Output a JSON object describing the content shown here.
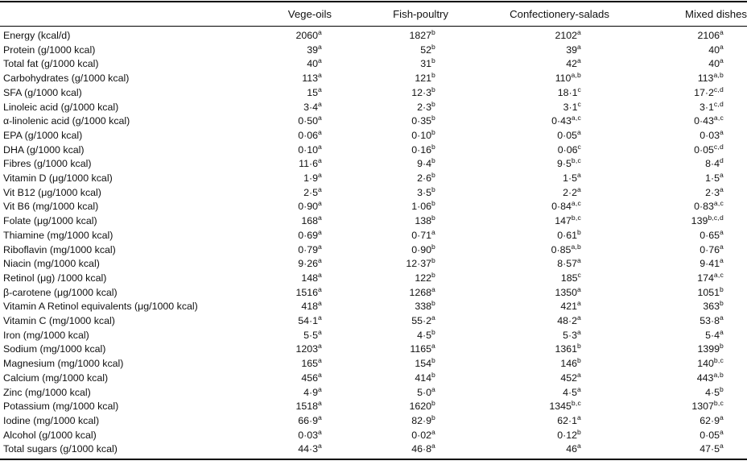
{
  "table": {
    "columns": [
      "Vege-oils",
      "Fish-poultry",
      "Confectionery-salads",
      "Mixed dishes"
    ],
    "rows": [
      {
        "label": "Energy (kcal/d)",
        "cells": [
          {
            "v": "2060",
            "s": "a"
          },
          {
            "v": "1827",
            "s": "b"
          },
          {
            "v": "2102",
            "s": "a"
          },
          {
            "v": "2106",
            "s": "a"
          }
        ]
      },
      {
        "label": "Protein (g/1000 kcal)",
        "cells": [
          {
            "v": "39",
            "s": "a"
          },
          {
            "v": "52",
            "s": "b"
          },
          {
            "v": "39",
            "s": "a"
          },
          {
            "v": "40",
            "s": "a"
          }
        ]
      },
      {
        "label": "Total fat (g/1000 kcal)",
        "cells": [
          {
            "v": "40",
            "s": "a"
          },
          {
            "v": "31",
            "s": "b"
          },
          {
            "v": "42",
            "s": "a"
          },
          {
            "v": "40",
            "s": "a"
          }
        ]
      },
      {
        "label": "Carbohydrates (g/1000 kcal)",
        "cells": [
          {
            "v": "113",
            "s": "a"
          },
          {
            "v": "121",
            "s": "b"
          },
          {
            "v": "110",
            "s": "a,b"
          },
          {
            "v": "113",
            "s": "a,b"
          }
        ]
      },
      {
        "label": "SFA (g/1000 kcal)",
        "cells": [
          {
            "v": "15",
            "s": "a"
          },
          {
            "v": "12·3",
            "s": "b"
          },
          {
            "v": "18·1",
            "s": "c"
          },
          {
            "v": "17·2",
            "s": "c,d"
          }
        ]
      },
      {
        "label": "Linoleic acid (g/1000 kcal)",
        "cells": [
          {
            "v": "3·4",
            "s": "a"
          },
          {
            "v": "2·3",
            "s": "b"
          },
          {
            "v": "3·1",
            "s": "c"
          },
          {
            "v": "3·1",
            "s": "c,d"
          }
        ]
      },
      {
        "label": "α-linolenic acid (g/1000 kcal)",
        "cells": [
          {
            "v": "0·50",
            "s": "a"
          },
          {
            "v": "0·35",
            "s": "b"
          },
          {
            "v": "0·43",
            "s": "a,c"
          },
          {
            "v": "0·43",
            "s": "a,c"
          }
        ]
      },
      {
        "label": "EPA (g/1000 kcal)",
        "cells": [
          {
            "v": "0·06",
            "s": "a"
          },
          {
            "v": "0·10",
            "s": "b"
          },
          {
            "v": "0·05",
            "s": "a"
          },
          {
            "v": "0·03",
            "s": "a"
          }
        ]
      },
      {
        "label": "DHA (g/1000 kcal)",
        "cells": [
          {
            "v": "0·10",
            "s": "a"
          },
          {
            "v": "0·16",
            "s": "b"
          },
          {
            "v": "0·06",
            "s": "c"
          },
          {
            "v": "0·05",
            "s": "c,d"
          }
        ]
      },
      {
        "label": "Fibres (g/1000 kcal)",
        "cells": [
          {
            "v": "11·6",
            "s": "a"
          },
          {
            "v": "9·4",
            "s": "b"
          },
          {
            "v": "9·5",
            "s": "b,c"
          },
          {
            "v": "8·4",
            "s": "d"
          }
        ]
      },
      {
        "label": "Vitamin D (μg/1000 kcal)",
        "cells": [
          {
            "v": "1·9",
            "s": "a"
          },
          {
            "v": "2·6",
            "s": "b"
          },
          {
            "v": "1·5",
            "s": "a"
          },
          {
            "v": "1·5",
            "s": "a"
          }
        ]
      },
      {
        "label": "Vit B12 (μg/1000 kcal)",
        "cells": [
          {
            "v": "2·5",
            "s": "a"
          },
          {
            "v": "3·5",
            "s": "b"
          },
          {
            "v": "2·2",
            "s": "a"
          },
          {
            "v": "2·3",
            "s": "a"
          }
        ]
      },
      {
        "label": "Vit B6 (mg/1000 kcal)",
        "cells": [
          {
            "v": "0·90",
            "s": "a"
          },
          {
            "v": "1·06",
            "s": "b"
          },
          {
            "v": "0·84",
            "s": "a,c"
          },
          {
            "v": "0·83",
            "s": "a,c"
          }
        ]
      },
      {
        "label": "Folate (μg/1000 kcal)",
        "cells": [
          {
            "v": "168",
            "s": "a"
          },
          {
            "v": "138",
            "s": "b"
          },
          {
            "v": "147",
            "s": "b,c"
          },
          {
            "v": "139",
            "s": "b,c,d"
          }
        ]
      },
      {
        "label": "Thiamine (mg/1000 kcal)",
        "cells": [
          {
            "v": "0·69",
            "s": "a"
          },
          {
            "v": "0·71",
            "s": "a"
          },
          {
            "v": "0·61",
            "s": "b"
          },
          {
            "v": "0·65",
            "s": "a"
          }
        ]
      },
      {
        "label": "Riboflavin (mg/1000 kcal)",
        "cells": [
          {
            "v": "0·79",
            "s": "a"
          },
          {
            "v": "0·90",
            "s": "b"
          },
          {
            "v": "0·85",
            "s": "a,b"
          },
          {
            "v": "0·76",
            "s": "a"
          }
        ]
      },
      {
        "label": "Niacin (mg/1000 kcal)",
        "cells": [
          {
            "v": "9·26",
            "s": "a"
          },
          {
            "v": "12·37",
            "s": "b"
          },
          {
            "v": "8·57",
            "s": "a"
          },
          {
            "v": "9·41",
            "s": "a"
          }
        ]
      },
      {
        "label": "Retinol (μg) /1000 kcal)",
        "cells": [
          {
            "v": "148",
            "s": "a"
          },
          {
            "v": "122",
            "s": "b"
          },
          {
            "v": "185",
            "s": "c"
          },
          {
            "v": "174",
            "s": "a,c"
          }
        ]
      },
      {
        "label": "β-carotene (μg/1000 kcal)",
        "cells": [
          {
            "v": "1516",
            "s": "a"
          },
          {
            "v": "1268",
            "s": "a"
          },
          {
            "v": "1350",
            "s": "a"
          },
          {
            "v": "1051",
            "s": "b"
          }
        ]
      },
      {
        "label": "Vitamin A Retinol equivalents (μg/1000 kcal)",
        "cells": [
          {
            "v": "418",
            "s": "a"
          },
          {
            "v": "338",
            "s": "b"
          },
          {
            "v": "421",
            "s": "a"
          },
          {
            "v": "363",
            "s": "b"
          }
        ]
      },
      {
        "label": "Vitamin C (mg/1000 kcal)",
        "cells": [
          {
            "v": "54·1",
            "s": "a"
          },
          {
            "v": "55·2",
            "s": "a"
          },
          {
            "v": "48·2",
            "s": "a"
          },
          {
            "v": "53·8",
            "s": "a"
          }
        ]
      },
      {
        "label": "Iron (mg/1000 kcal)",
        "cells": [
          {
            "v": "5·5",
            "s": "a"
          },
          {
            "v": "4·5",
            "s": "b"
          },
          {
            "v": "5·3",
            "s": "a"
          },
          {
            "v": "5·4",
            "s": "a"
          }
        ]
      },
      {
        "label": "Sodium (mg/1000 kcal)",
        "cells": [
          {
            "v": "1203",
            "s": "a"
          },
          {
            "v": "1165",
            "s": "a"
          },
          {
            "v": "1361",
            "s": "b"
          },
          {
            "v": "1399",
            "s": "b"
          }
        ]
      },
      {
        "label": "Magnesium (mg/1000 kcal)",
        "cells": [
          {
            "v": "165",
            "s": "a"
          },
          {
            "v": "154",
            "s": "b"
          },
          {
            "v": "146",
            "s": "b"
          },
          {
            "v": "140",
            "s": "b,c"
          }
        ]
      },
      {
        "label": "Calcium (mg/1000 kcal)",
        "cells": [
          {
            "v": "456",
            "s": "a"
          },
          {
            "v": "414",
            "s": "b"
          },
          {
            "v": "452",
            "s": "a"
          },
          {
            "v": "443",
            "s": "a,b"
          }
        ]
      },
      {
        "label": "Zinc (mg/1000 kcal)",
        "cells": [
          {
            "v": "4·9",
            "s": "a"
          },
          {
            "v": "5·0",
            "s": "a"
          },
          {
            "v": "4·5",
            "s": "a"
          },
          {
            "v": "4·5",
            "s": "b"
          }
        ]
      },
      {
        "label": "Potassium (mg/1000 kcal)",
        "cells": [
          {
            "v": "1518",
            "s": "a"
          },
          {
            "v": "1620",
            "s": "b"
          },
          {
            "v": "1345",
            "s": "b,c"
          },
          {
            "v": "1307",
            "s": "b,c"
          }
        ]
      },
      {
        "label": "Iodine (mg/1000 kcal)",
        "cells": [
          {
            "v": "66·9",
            "s": "a"
          },
          {
            "v": "82·9",
            "s": "b"
          },
          {
            "v": "62·1",
            "s": "a"
          },
          {
            "v": "62·9",
            "s": "a"
          }
        ]
      },
      {
        "label": "Alcohol (g/1000 kcal)",
        "cells": [
          {
            "v": "0·03",
            "s": "a"
          },
          {
            "v": "0·02",
            "s": "a"
          },
          {
            "v": "0·12",
            "s": "b"
          },
          {
            "v": "0·05",
            "s": "a"
          }
        ]
      },
      {
        "label": "Total sugars (g/1000 kcal)",
        "cells": [
          {
            "v": "44·3",
            "s": "a"
          },
          {
            "v": "46·8",
            "s": "a"
          },
          {
            "v": "46",
            "s": "a"
          },
          {
            "v": "47·5",
            "s": "a"
          }
        ]
      }
    ]
  },
  "colors": {
    "text": "#111111",
    "rule": "#000000",
    "background": "#ffffff"
  }
}
